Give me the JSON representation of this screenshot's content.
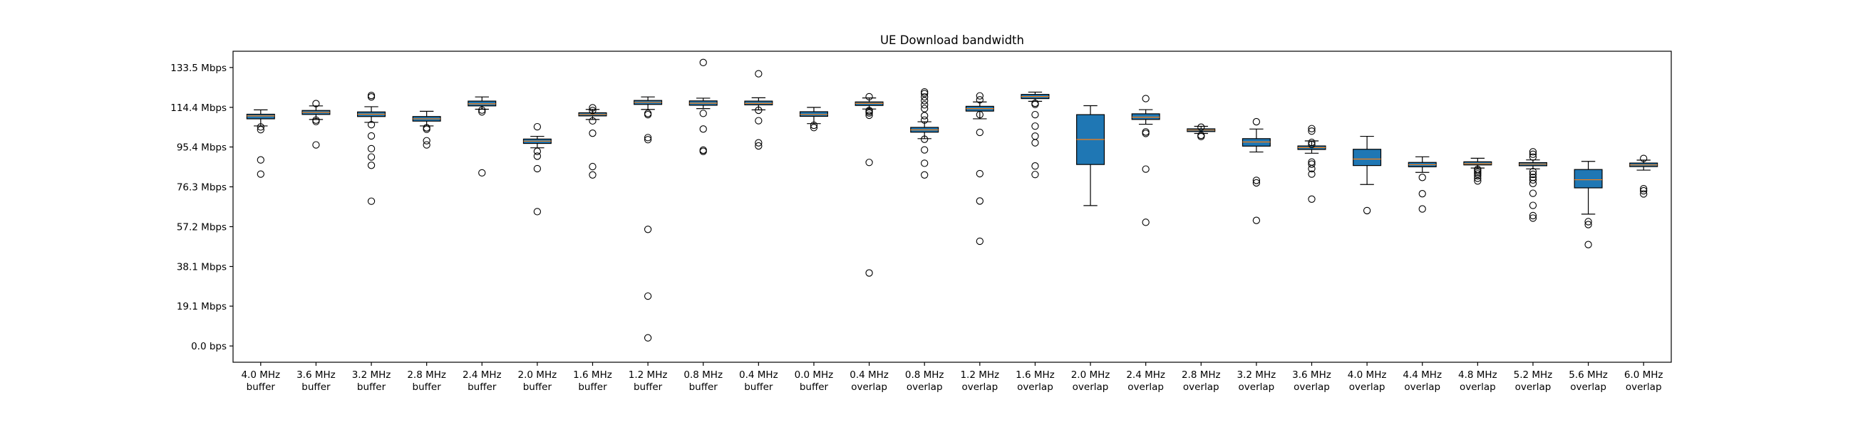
{
  "chart_data": {
    "type": "box",
    "title": "UE Download bandwidth",
    "xlabel": "",
    "ylabel": "",
    "ylim": [
      -7.8,
      141.3
    ],
    "y_unit": "Mbps",
    "yticks": [
      {
        "value": 0.0,
        "label": "0.0 bps"
      },
      {
        "value": 19.1,
        "label": "19.1 Mbps"
      },
      {
        "value": 38.1,
        "label": "38.1 Mbps"
      },
      {
        "value": 57.2,
        "label": "57.2 Mbps"
      },
      {
        "value": 76.3,
        "label": "76.3 Mbps"
      },
      {
        "value": 95.4,
        "label": "95.4 Mbps"
      },
      {
        "value": 114.4,
        "label": "114.4 Mbps"
      },
      {
        "value": 133.5,
        "label": "133.5 Mbps"
      }
    ],
    "grid": false,
    "box_color": "#1f77b4",
    "median_color": "#ff7f0e",
    "categories": [
      {
        "line1": "4.0 MHz",
        "line2": "buffer",
        "whisker_low": 105.5,
        "q1": 108.9,
        "median": 110.3,
        "q3": 111.1,
        "whisker_high": 113.2,
        "fliers": [
          82.4,
          89.2,
          103.7,
          105.0
        ]
      },
      {
        "line1": "3.6 MHz",
        "line2": "buffer",
        "whisker_low": 108.6,
        "q1": 111.0,
        "median": 112.0,
        "q3": 112.9,
        "whisker_high": 115.1,
        "fliers": [
          96.4,
          107.6,
          108.3,
          116.2
        ]
      },
      {
        "line1": "3.2 MHz",
        "line2": "buffer",
        "whisker_low": 107.2,
        "q1": 110.0,
        "median": 111.1,
        "q3": 112.2,
        "whisker_high": 114.7,
        "fliers": [
          69.4,
          86.6,
          90.6,
          94.6,
          100.7,
          106.1,
          119.4,
          120.1
        ]
      },
      {
        "line1": "2.8 MHz",
        "line2": "buffer",
        "whisker_low": 105.5,
        "q1": 107.8,
        "median": 108.9,
        "q3": 110.0,
        "whisker_high": 112.5,
        "fliers": [
          96.4,
          98.4,
          103.9,
          104.6
        ]
      },
      {
        "line1": "2.4 MHz",
        "line2": "buffer",
        "whisker_low": 113.5,
        "q1": 115.1,
        "median": 116.1,
        "q3": 117.4,
        "whisker_high": 119.4,
        "fliers": [
          83.0,
          112.2,
          113.1
        ]
      },
      {
        "line1": "2.0 MHz",
        "line2": "buffer",
        "whisker_low": 95.0,
        "q1": 97.1,
        "median": 98.2,
        "q3": 99.2,
        "whisker_high": 100.5,
        "fliers": [
          64.4,
          85.0,
          91.0,
          93.3,
          105.1
        ]
      },
      {
        "line1": "1.6 MHz",
        "line2": "buffer",
        "whisker_low": 108.6,
        "q1": 110.3,
        "median": 111.0,
        "q3": 111.8,
        "whisker_high": 113.4,
        "fliers": [
          82.0,
          86.0,
          102.0,
          107.9,
          112.9,
          114.2
        ]
      },
      {
        "line1": "1.2 MHz",
        "line2": "buffer",
        "whisker_low": 113.4,
        "q1": 115.8,
        "median": 116.8,
        "q3": 117.7,
        "whisker_high": 119.4,
        "fliers": [
          3.9,
          23.9,
          55.9,
          98.9,
          99.9,
          110.9,
          111.5
        ]
      },
      {
        "line1": "0.8 MHz",
        "line2": "buffer",
        "whisker_low": 113.8,
        "q1": 115.4,
        "median": 116.4,
        "q3": 117.5,
        "whisker_high": 118.8,
        "fliers": [
          93.3,
          93.9,
          104.0,
          111.5,
          135.9
        ]
      },
      {
        "line1": "0.4 MHz",
        "line2": "buffer",
        "whisker_low": 113.2,
        "q1": 115.6,
        "median": 116.3,
        "q3": 117.4,
        "whisker_high": 119.0,
        "fliers": [
          95.9,
          97.4,
          108.0,
          113.0,
          130.5
        ]
      },
      {
        "line1": "0.0 MHz",
        "line2": "buffer",
        "whisker_low": 106.6,
        "q1": 110.1,
        "median": 111.0,
        "q3": 112.3,
        "whisker_high": 114.4,
        "fliers": [
          104.7,
          105.8
        ]
      },
      {
        "line1": "0.4 MHz",
        "line2": "overlap",
        "whisker_low": 113.6,
        "q1": 115.3,
        "median": 116.3,
        "q3": 117.0,
        "whisker_high": 118.9,
        "fliers": [
          35.0,
          88.0,
          110.6,
          111.7,
          112.4,
          112.9,
          119.5
        ]
      },
      {
        "line1": "0.8 MHz",
        "line2": "overlap",
        "whisker_low": 99.4,
        "q1": 102.5,
        "median": 103.6,
        "q3": 104.8,
        "whisker_high": 107.5,
        "fliers": [
          82.0,
          87.6,
          94.0,
          99.1,
          108.3,
          110.4,
          113.8,
          115.6,
          117.6,
          119.4,
          121.0,
          121.8
        ]
      },
      {
        "line1": "1.2 MHz",
        "line2": "overlap",
        "whisker_low": 108.9,
        "q1": 112.6,
        "median": 113.8,
        "q3": 114.9,
        "whisker_high": 117.0,
        "fliers": [
          50.2,
          69.5,
          82.6,
          102.4,
          110.9,
          118.0,
          119.9
        ]
      },
      {
        "line1": "1.6 MHz",
        "line2": "overlap",
        "whisker_low": 117.3,
        "q1": 118.6,
        "median": 119.6,
        "q3": 120.6,
        "whisker_high": 121.7,
        "fliers": [
          82.2,
          86.3,
          97.4,
          100.6,
          105.4,
          110.9,
          115.8,
          116.4
        ]
      },
      {
        "line1": "2.0 MHz",
        "line2": "overlap",
        "whisker_low": 67.3,
        "q1": 87.0,
        "median": 99.0,
        "q3": 110.9,
        "whisker_high": 115.2,
        "fliers": []
      },
      {
        "line1": "2.4 MHz",
        "line2": "overlap",
        "whisker_low": 106.3,
        "q1": 108.6,
        "median": 109.7,
        "q3": 111.3,
        "whisker_high": 113.3,
        "fliers": [
          59.3,
          84.8,
          101.9,
          102.6,
          118.6
        ]
      },
      {
        "line1": "2.8 MHz",
        "line2": "overlap",
        "whisker_low": 101.9,
        "q1": 102.8,
        "median": 103.5,
        "q3": 104.1,
        "whisker_high": 105.3,
        "fliers": [
          100.4,
          101.0,
          104.9
        ]
      },
      {
        "line1": "3.2 MHz",
        "line2": "overlap",
        "whisker_low": 93.0,
        "q1": 95.8,
        "median": 97.8,
        "q3": 99.4,
        "whisker_high": 104.0,
        "fliers": [
          60.2,
          78.2,
          79.4,
          107.5
        ]
      },
      {
        "line1": "3.6 MHz",
        "line2": "overlap",
        "whisker_low": 92.4,
        "q1": 94.2,
        "median": 95.1,
        "q3": 95.9,
        "whisker_high": 98.3,
        "fliers": [
          70.4,
          82.4,
          85.0,
          87.2,
          88.2,
          96.6,
          97.6,
          103.0,
          104.2
        ]
      },
      {
        "line1": "4.0 MHz",
        "line2": "overlap",
        "whisker_low": 77.4,
        "q1": 86.5,
        "median": 89.6,
        "q3": 94.3,
        "whisker_high": 100.5,
        "fliers": [
          64.9
        ]
      },
      {
        "line1": "4.4 MHz",
        "line2": "overlap",
        "whisker_low": 83.2,
        "q1": 85.9,
        "median": 86.9,
        "q3": 88.0,
        "whisker_high": 90.7,
        "fliers": [
          65.7,
          73.0,
          80.8
        ]
      },
      {
        "line1": "4.8 MHz",
        "line2": "overlap",
        "whisker_low": 85.3,
        "q1": 86.8,
        "median": 87.4,
        "q3": 88.3,
        "whisker_high": 90.0,
        "fliers": [
          79.1,
          80.4,
          81.6,
          82.5,
          83.3,
          84.1,
          84.7
        ]
      },
      {
        "line1": "5.2 MHz",
        "line2": "overlap",
        "whisker_low": 84.9,
        "q1": 86.4,
        "median": 87.2,
        "q3": 87.9,
        "whisker_high": 89.2,
        "fliers": [
          61.3,
          62.5,
          67.4,
          73.2,
          77.9,
          79.6,
          80.8,
          82.3,
          83.6,
          90.6,
          91.9,
          93.1
        ]
      },
      {
        "line1": "5.6 MHz",
        "line2": "overlap",
        "whisker_low": 63.2,
        "q1": 75.8,
        "median": 79.7,
        "q3": 84.6,
        "whisker_high": 88.5,
        "fliers": [
          48.6,
          58.2,
          59.6
        ]
      },
      {
        "line1": "6.0 MHz",
        "line2": "overlap",
        "whisker_low": 84.3,
        "q1": 86.0,
        "median": 86.8,
        "q3": 87.7,
        "whisker_high": 89.1,
        "fliers": [
          72.9,
          74.4,
          75.4,
          89.9
        ]
      }
    ]
  }
}
